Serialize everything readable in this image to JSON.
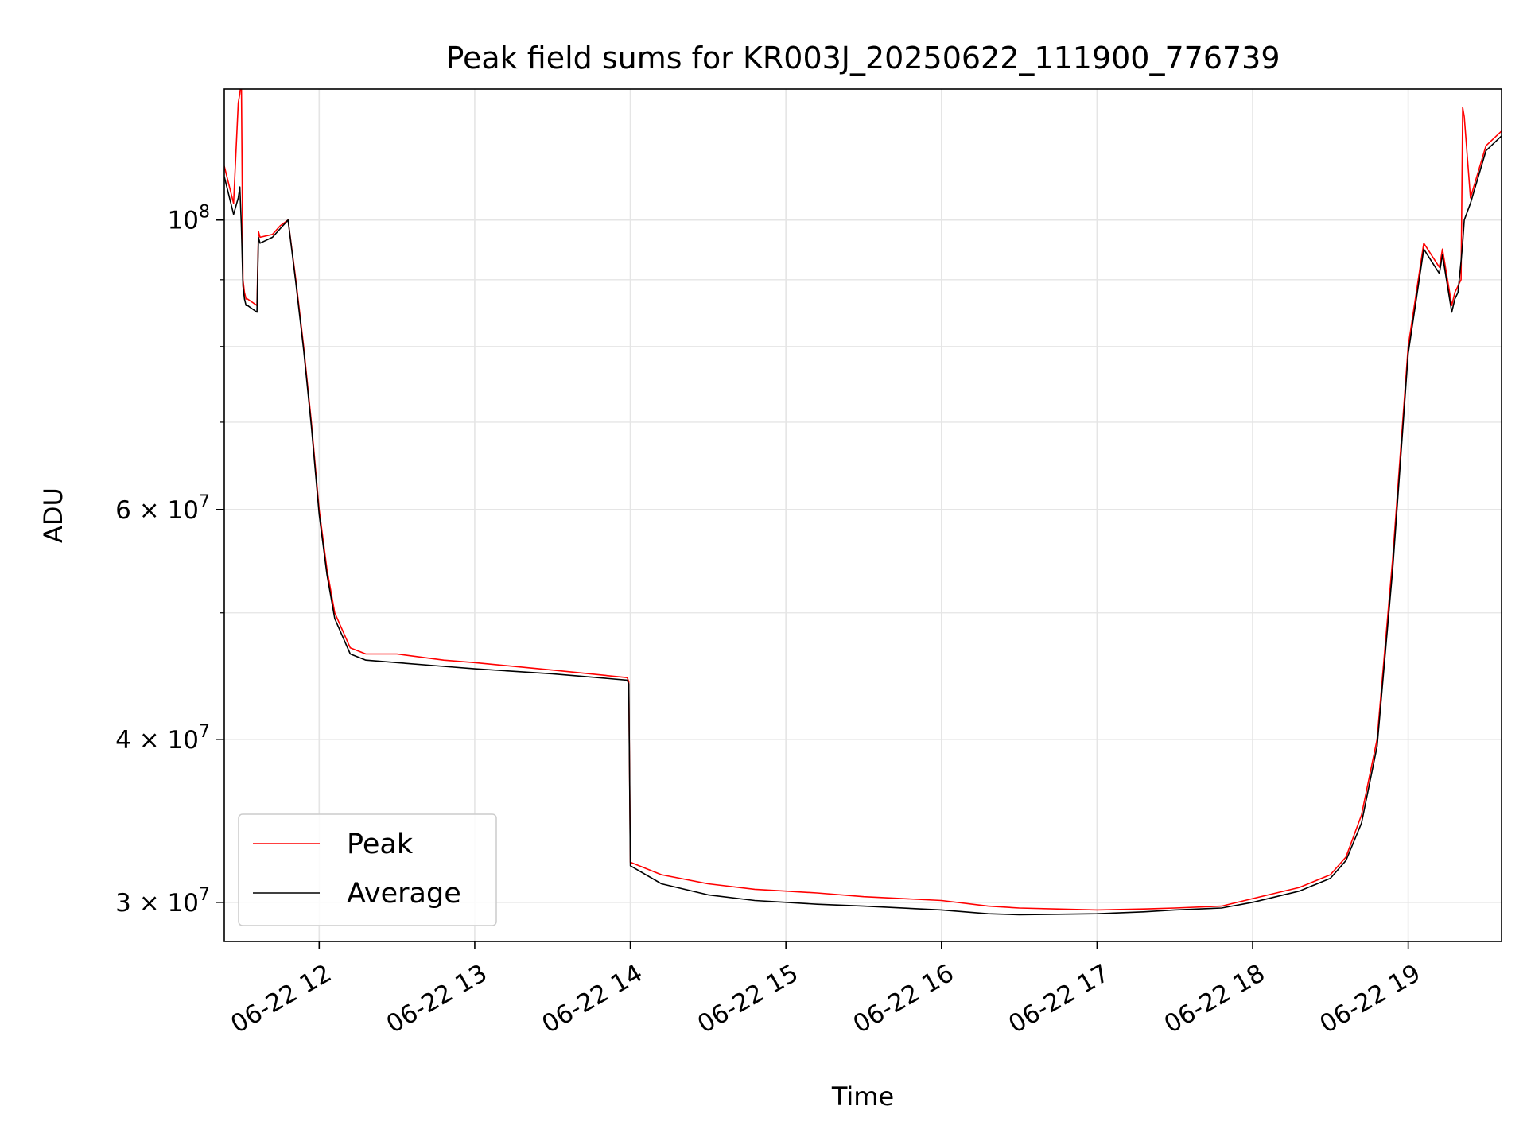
{
  "chart_data": {
    "type": "line",
    "title": "Peak field sums for KR003J_20250622_111900_776739",
    "xlabel": "Time",
    "ylabel": "ADU",
    "yscale": "log",
    "ylim": [
      28000000,
      126000000
    ],
    "x_units": "hours (2025-06-22)",
    "xlim": [
      11.39,
      19.6
    ],
    "x_tick_values": [
      12,
      13,
      14,
      15,
      16,
      17,
      18,
      19
    ],
    "x_tick_labels": [
      "06-22 12",
      "06-22 13",
      "06-22 14",
      "06-22 15",
      "06-22 16",
      "06-22 17",
      "06-22 18",
      "06-22 19"
    ],
    "y_major_ticks": [
      {
        "value": 30000000,
        "mantissa": "3",
        "exponent": "7"
      },
      {
        "value": 40000000,
        "mantissa": "4",
        "exponent": "7"
      },
      {
        "value": 60000000,
        "mantissa": "6",
        "exponent": "7"
      },
      {
        "value": 100000000,
        "mantissa": "",
        "exponent": "8"
      }
    ],
    "y_minor_ticks": [
      50000000,
      70000000,
      80000000,
      90000000
    ],
    "grid": true,
    "legend_position": "lower left",
    "colors": {
      "peak": "#ff0000",
      "average": "#000000",
      "grid": "#e5e5e5"
    },
    "series": [
      {
        "name": "Peak",
        "color": "#ff0000",
        "x": [
          11.39,
          11.45,
          11.48,
          11.49,
          11.5,
          11.51,
          11.52,
          11.53,
          11.54,
          11.6,
          11.61,
          11.62,
          11.7,
          11.75,
          11.8,
          11.85,
          11.9,
          11.95,
          12.0,
          12.05,
          12.1,
          12.2,
          12.3,
          12.5,
          12.8,
          13.0,
          13.5,
          13.98,
          13.99,
          14.0,
          14.2,
          14.5,
          14.8,
          15.0,
          15.2,
          15.5,
          16.0,
          16.3,
          16.5,
          17.0,
          17.3,
          17.5,
          17.8,
          18.0,
          18.3,
          18.5,
          18.6,
          18.7,
          18.8,
          18.9,
          19.0,
          19.1,
          19.2,
          19.22,
          19.28,
          19.3,
          19.32,
          19.34,
          19.35,
          19.36,
          19.4,
          19.5,
          19.6
        ],
        "y": [
          110000000,
          103000000,
          123000000,
          125000000,
          128000000,
          90000000,
          88000000,
          87000000,
          87000000,
          86000000,
          98000000,
          97000000,
          97500000,
          99000000,
          100000000,
          90000000,
          80000000,
          70000000,
          60000000,
          54000000,
          50000000,
          47000000,
          46500000,
          46500000,
          46000000,
          45800000,
          45200000,
          44600000,
          44300000,
          32200000,
          31500000,
          31000000,
          30700000,
          30600000,
          30500000,
          30300000,
          30100000,
          29800000,
          29700000,
          29600000,
          29650000,
          29700000,
          29800000,
          30200000,
          30800000,
          31500000,
          32500000,
          35000000,
          40000000,
          55000000,
          80000000,
          96000000,
          92000000,
          95000000,
          86000000,
          88000000,
          89000000,
          90000000,
          122000000,
          120000000,
          104000000,
          114000000,
          117000000
        ]
      },
      {
        "name": "Average",
        "color": "#000000",
        "x": [
          11.39,
          11.45,
          11.48,
          11.49,
          11.5,
          11.51,
          11.52,
          11.53,
          11.54,
          11.6,
          11.61,
          11.62,
          11.7,
          11.75,
          11.8,
          11.85,
          11.9,
          11.95,
          12.0,
          12.05,
          12.1,
          12.2,
          12.3,
          12.5,
          12.8,
          13.0,
          13.5,
          13.98,
          13.99,
          14.0,
          14.2,
          14.5,
          14.8,
          15.0,
          15.2,
          15.5,
          16.0,
          16.3,
          16.5,
          17.0,
          17.3,
          17.5,
          17.8,
          18.0,
          18.3,
          18.5,
          18.6,
          18.7,
          18.8,
          18.9,
          19.0,
          19.1,
          19.2,
          19.22,
          19.28,
          19.3,
          19.32,
          19.34,
          19.35,
          19.36,
          19.4,
          19.5,
          19.6
        ],
        "y": [
          108000000,
          101000000,
          104000000,
          106000000,
          99000000,
          89000000,
          87000000,
          86000000,
          86000000,
          85000000,
          97000000,
          96000000,
          97000000,
          98500000,
          100000000,
          89500000,
          79500000,
          69500000,
          59500000,
          53500000,
          49500000,
          46500000,
          46000000,
          45800000,
          45500000,
          45300000,
          44900000,
          44400000,
          44100000,
          32000000,
          31000000,
          30400000,
          30100000,
          30000000,
          29900000,
          29800000,
          29600000,
          29400000,
          29350000,
          29400000,
          29500000,
          29600000,
          29700000,
          30000000,
          30600000,
          31300000,
          32300000,
          34500000,
          39500000,
          54000000,
          79000000,
          95000000,
          91000000,
          94000000,
          85000000,
          87000000,
          88000000,
          93000000,
          96000000,
          100000000,
          103000000,
          113000000,
          116000000
        ]
      }
    ]
  }
}
